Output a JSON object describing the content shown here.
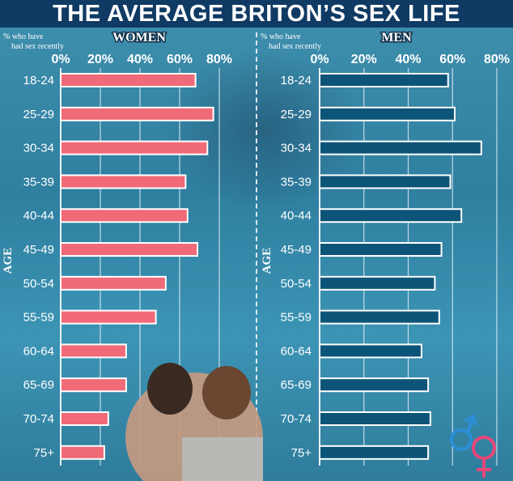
{
  "title": "THE AVERAGE BRITON’S SEX LIFE",
  "chart_data": [
    {
      "type": "bar",
      "orientation": "horizontal",
      "panel_title": "WOMEN",
      "xlabel": "% who have had sex recently",
      "ylabel": "AGE",
      "xlim": [
        0,
        80
      ],
      "xticks": [
        "0%",
        "20%",
        "40%",
        "60%",
        "80%"
      ],
      "grid": true,
      "categories": [
        "18-24",
        "25-29",
        "30-34",
        "35-39",
        "40-44",
        "45-49",
        "50-54",
        "55-59",
        "60-64",
        "65-69",
        "70-74",
        "75+"
      ],
      "values": [
        68,
        77,
        74,
        63,
        64,
        69,
        53,
        48,
        33,
        33,
        24,
        22
      ],
      "color": "#f06a78"
    },
    {
      "type": "bar",
      "orientation": "horizontal",
      "panel_title": "MEN",
      "xlabel": "% who have had sex recently",
      "ylabel": "AGE",
      "xlim": [
        0,
        80
      ],
      "xticks": [
        "0%",
        "20%",
        "40%",
        "60%",
        "80%"
      ],
      "grid": true,
      "categories": [
        "18-24",
        "25-29",
        "30-34",
        "35-39",
        "40-44",
        "45-49",
        "50-54",
        "55-59",
        "60-64",
        "65-69",
        "70-74",
        "75+"
      ],
      "values": [
        58,
        61,
        73,
        59,
        64,
        55,
        52,
        54,
        46,
        49,
        50,
        49
      ],
      "color": "#0d5578"
    }
  ],
  "colors": {
    "title_bg": "#0f3a63",
    "male_symbol": "#2b8fd6",
    "female_symbol": "#e8477a"
  }
}
